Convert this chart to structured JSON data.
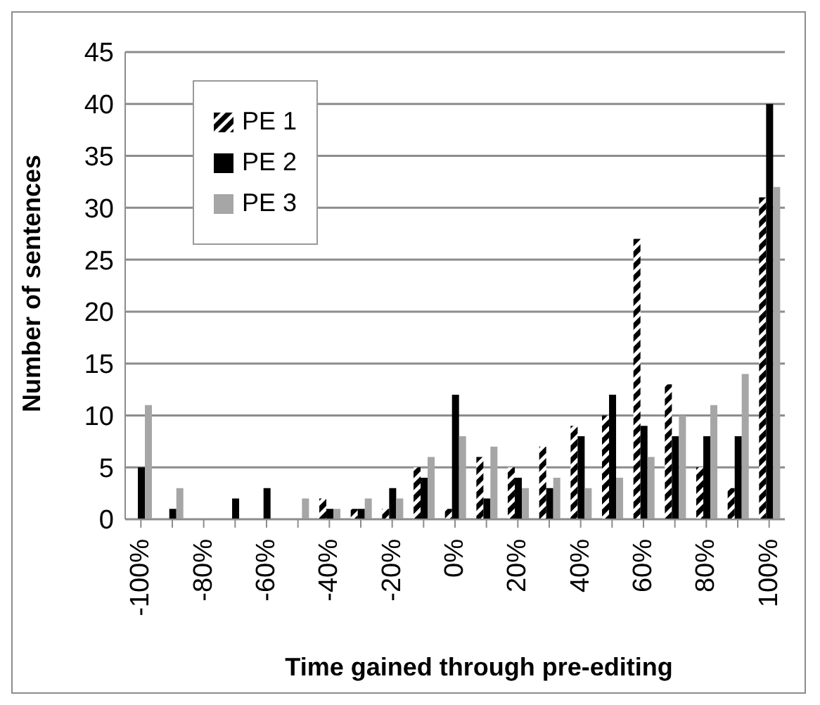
{
  "chart_data": {
    "type": "bar",
    "xlabel": "Time gained through pre-editing",
    "ylabel": "Number of sentences",
    "categories": [
      "-100%",
      null,
      "-80%",
      null,
      "-60%",
      null,
      "-40%",
      null,
      "-20%",
      null,
      "0%",
      null,
      "20%",
      null,
      "40%",
      null,
      "60%",
      null,
      "80%",
      null,
      "100%"
    ],
    "series": [
      {
        "name": "PE 1",
        "color": "#000000",
        "values": [
          0,
          0,
          0,
          0,
          0,
          0,
          2,
          1,
          1,
          5,
          1,
          6,
          5,
          7,
          9,
          10,
          27,
          13,
          5,
          3,
          31
        ]
      },
      {
        "name": "PE 2",
        "color": "#000000",
        "values": [
          5,
          1,
          0,
          2,
          3,
          0,
          1,
          1,
          3,
          4,
          12,
          2,
          4,
          3,
          8,
          12,
          9,
          8,
          8,
          8,
          40
        ]
      },
      {
        "name": "PE 3",
        "color": "#a6a6a6",
        "values": [
          11,
          3,
          0,
          0,
          0,
          2,
          1,
          2,
          2,
          6,
          8,
          7,
          3,
          4,
          3,
          4,
          6,
          10,
          11,
          14,
          32
        ]
      }
    ],
    "ylim": [
      0,
      45
    ],
    "yticks": [
      0,
      5,
      10,
      15,
      20,
      25,
      30,
      35,
      40,
      45
    ],
    "grid": "y",
    "legend": "top left"
  }
}
